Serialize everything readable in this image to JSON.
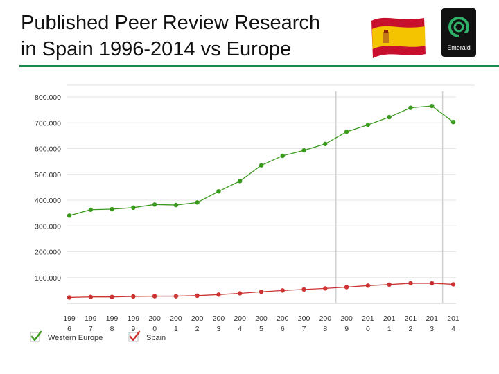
{
  "title": {
    "line1": "Published Peer Review Research",
    "line2": "in Spain 1996-2014 vs Europe"
  },
  "logo": {
    "text": "Emerald"
  },
  "colors": {
    "accent": "#1a8a4a",
    "western_europe": "#3a9a1e",
    "spain": "#cc3333"
  },
  "chart_data": {
    "type": "line",
    "x": [
      "1996",
      "1997",
      "1998",
      "1999",
      "2000",
      "2001",
      "2002",
      "2003",
      "2004",
      "2005",
      "2006",
      "2007",
      "2008",
      "2009",
      "2010",
      "2011",
      "2012",
      "2013",
      "2014"
    ],
    "x_tick_labels": [
      [
        "199",
        "6"
      ],
      [
        "199",
        "7"
      ],
      [
        "199",
        "8"
      ],
      [
        "199",
        "9"
      ],
      [
        "200",
        "0"
      ],
      [
        "200",
        "1"
      ],
      [
        "200",
        "2"
      ],
      [
        "200",
        "3"
      ],
      [
        "200",
        "4"
      ],
      [
        "200",
        "5"
      ],
      [
        "200",
        "6"
      ],
      [
        "200",
        "7"
      ],
      [
        "200",
        "8"
      ],
      [
        "200",
        "9"
      ],
      [
        "201",
        "0"
      ],
      [
        "201",
        "1"
      ],
      [
        "201",
        "2"
      ],
      [
        "201",
        "3"
      ],
      [
        "201",
        "4"
      ]
    ],
    "y_ticks": [
      100000,
      200000,
      300000,
      400000,
      500000,
      600000,
      700000,
      800000
    ],
    "y_tick_labels": [
      "100.000",
      "200.000",
      "300.000",
      "400.000",
      "500.000",
      "600.000",
      "700.000",
      "800.000"
    ],
    "ylim": [
      0,
      800000
    ],
    "grid": true,
    "series": [
      {
        "name": "Western Europe",
        "color": "#3a9a1e",
        "values": [
          340000,
          363000,
          365000,
          371000,
          383000,
          381000,
          391000,
          434000,
          474000,
          535000,
          572000,
          593000,
          618000,
          665000,
          692000,
          722000,
          758000,
          765000,
          703000
        ]
      },
      {
        "name": "Spain",
        "color": "#cc3333",
        "values": [
          23000,
          25000,
          25000,
          27000,
          28000,
          28000,
          30000,
          34000,
          39000,
          45000,
          50000,
          54000,
          58000,
          63000,
          69000,
          73000,
          78000,
          78000,
          74000
        ]
      }
    ],
    "legend": {
      "placement": "bottom-left",
      "entries": [
        "Western Europe",
        "Spain"
      ]
    }
  }
}
